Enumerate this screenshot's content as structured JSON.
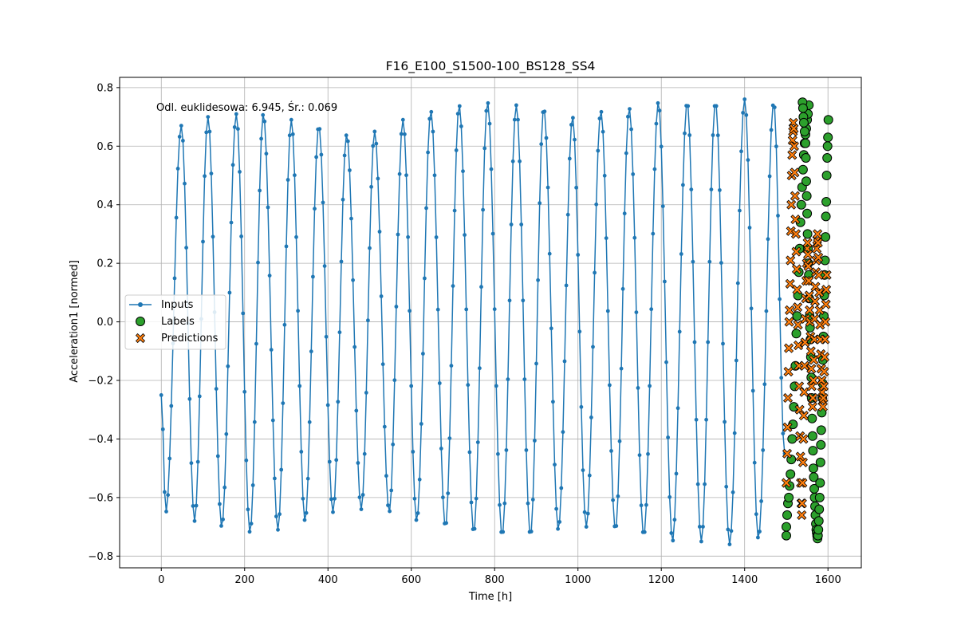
{
  "chart_data": {
    "type": "line",
    "title": "F16_E100_S1500-100_BS128_SS4",
    "xlabel": "Time [h]",
    "ylabel": "Acceleration1 [normed]",
    "annotation": "Odl. euklidesowa: 6.945, Śr.: 0.069",
    "xlim": [
      -100,
      1680
    ],
    "ylim": [
      -0.84,
      0.835
    ],
    "xticks": [
      0,
      200,
      400,
      600,
      800,
      1000,
      1200,
      1400,
      1600
    ],
    "yticks": [
      -0.8,
      -0.6,
      -0.4,
      -0.2,
      0.0,
      0.2,
      0.4,
      0.6,
      0.8
    ],
    "xtick_labels": [
      "0",
      "200",
      "400",
      "600",
      "800",
      "1000",
      "1200",
      "1400",
      "1600"
    ],
    "ytick_labels": [
      "−0.8",
      "−0.6",
      "−0.4",
      "−0.2",
      "0.0",
      "0.2",
      "0.4",
      "0.6",
      "0.8"
    ],
    "grid": true,
    "legend_position": "center-left",
    "inputs": {
      "name": "Inputs",
      "color": "#1f77b4",
      "x_start": 0,
      "x_end": 1496,
      "x_step": 4,
      "peaks": [
        {
          "t": 48,
          "v": 0.67
        },
        {
          "t": 112,
          "v": 0.7
        },
        {
          "t": 180,
          "v": 0.71
        },
        {
          "t": 245,
          "v": 0.71
        },
        {
          "t": 312,
          "v": 0.69
        },
        {
          "t": 378,
          "v": 0.67
        },
        {
          "t": 445,
          "v": 0.64
        },
        {
          "t": 512,
          "v": 0.65
        },
        {
          "t": 580,
          "v": 0.69
        },
        {
          "t": 647,
          "v": 0.72
        },
        {
          "t": 715,
          "v": 0.74
        },
        {
          "t": 783,
          "v": 0.75
        },
        {
          "t": 852,
          "v": 0.74
        },
        {
          "t": 918,
          "v": 0.73
        },
        {
          "t": 987,
          "v": 0.7
        },
        {
          "t": 1055,
          "v": 0.72
        },
        {
          "t": 1123,
          "v": 0.73
        },
        {
          "t": 1193,
          "v": 0.75
        },
        {
          "t": 1262,
          "v": 0.75
        },
        {
          "t": 1330,
          "v": 0.75
        },
        {
          "t": 1400,
          "v": 0.76
        },
        {
          "t": 1470,
          "v": 0.75
        }
      ],
      "troughs": [
        {
          "t": 11,
          "v": -0.65
        },
        {
          "t": 80,
          "v": -0.68
        },
        {
          "t": 145,
          "v": -0.7
        },
        {
          "t": 213,
          "v": -0.72
        },
        {
          "t": 280,
          "v": -0.71
        },
        {
          "t": 345,
          "v": -0.68
        },
        {
          "t": 412,
          "v": -0.65
        },
        {
          "t": 480,
          "v": -0.64
        },
        {
          "t": 547,
          "v": -0.65
        },
        {
          "t": 613,
          "v": -0.68
        },
        {
          "t": 682,
          "v": -0.7
        },
        {
          "t": 750,
          "v": -0.72
        },
        {
          "t": 818,
          "v": -0.73
        },
        {
          "t": 886,
          "v": -0.73
        },
        {
          "t": 953,
          "v": -0.71
        },
        {
          "t": 1020,
          "v": -0.7
        },
        {
          "t": 1090,
          "v": -0.71
        },
        {
          "t": 1158,
          "v": -0.73
        },
        {
          "t": 1227,
          "v": -0.75
        },
        {
          "t": 1296,
          "v": -0.75
        },
        {
          "t": 1364,
          "v": -0.76
        },
        {
          "t": 1433,
          "v": -0.74
        }
      ]
    },
    "labels": {
      "name": "Labels",
      "color": "#2ca02c",
      "edge": "#000000",
      "points": [
        [
          1500,
          -0.73
        ],
        [
          1500,
          -0.7
        ],
        [
          1502,
          -0.66
        ],
        [
          1504,
          -0.62
        ],
        [
          1506,
          -0.6
        ],
        [
          1508,
          -0.56
        ],
        [
          1510,
          -0.52
        ],
        [
          1512,
          -0.47
        ],
        [
          1514,
          -0.4
        ],
        [
          1516,
          -0.35
        ],
        [
          1518,
          -0.29
        ],
        [
          1520,
          -0.22
        ],
        [
          1522,
          -0.15
        ],
        [
          1524,
          -0.04
        ],
        [
          1526,
          0.02
        ],
        [
          1528,
          0.09
        ],
        [
          1530,
          0.17
        ],
        [
          1532,
          0.25
        ],
        [
          1534,
          0.34
        ],
        [
          1536,
          0.4
        ],
        [
          1538,
          0.46
        ],
        [
          1540,
          0.52
        ],
        [
          1542,
          0.57
        ],
        [
          1544,
          0.61
        ],
        [
          1546,
          0.64
        ],
        [
          1548,
          0.66
        ],
        [
          1550,
          0.69
        ],
        [
          1552,
          0.71
        ],
        [
          1554,
          0.74
        ],
        [
          1539,
          0.75
        ],
        [
          1540,
          0.73
        ],
        [
          1541,
          0.7
        ],
        [
          1542,
          0.68
        ],
        [
          1544,
          0.65
        ],
        [
          1546,
          0.61
        ],
        [
          1547,
          0.56
        ],
        [
          1548,
          0.48
        ],
        [
          1549,
          0.43
        ],
        [
          1550,
          0.37
        ],
        [
          1551,
          0.3
        ],
        [
          1552,
          0.25
        ],
        [
          1553,
          0.2
        ],
        [
          1554,
          0.16
        ],
        [
          1555,
          0.08
        ],
        [
          1556,
          0.02
        ],
        [
          1557,
          -0.02
        ],
        [
          1558,
          -0.06
        ],
        [
          1559,
          -0.12
        ],
        [
          1560,
          -0.19
        ],
        [
          1561,
          -0.26
        ],
        [
          1562,
          -0.33
        ],
        [
          1563,
          -0.39
        ],
        [
          1564,
          -0.44
        ],
        [
          1565,
          -0.5
        ],
        [
          1566,
          -0.53
        ],
        [
          1567,
          -0.57
        ],
        [
          1568,
          -0.6
        ],
        [
          1569,
          -0.63
        ],
        [
          1570,
          -0.66
        ],
        [
          1571,
          -0.69
        ],
        [
          1572,
          -0.71
        ],
        [
          1573,
          -0.72
        ],
        [
          1574,
          -0.73
        ],
        [
          1575,
          -0.74
        ],
        [
          1576,
          -0.73
        ],
        [
          1577,
          -0.71
        ],
        [
          1578,
          -0.68
        ],
        [
          1579,
          -0.64
        ],
        [
          1580,
          -0.6
        ],
        [
          1581,
          -0.55
        ],
        [
          1582,
          -0.48
        ],
        [
          1583,
          -0.42
        ],
        [
          1584,
          -0.37
        ],
        [
          1585,
          -0.31
        ],
        [
          1586,
          -0.26
        ],
        [
          1587,
          -0.21
        ],
        [
          1588,
          -0.13
        ],
        [
          1589,
          -0.05
        ],
        [
          1590,
          0.02
        ],
        [
          1591,
          0.09
        ],
        [
          1592,
          0.16
        ],
        [
          1593,
          0.21
        ],
        [
          1594,
          0.29
        ],
        [
          1595,
          0.36
        ],
        [
          1596,
          0.41
        ],
        [
          1597,
          0.5
        ],
        [
          1598,
          0.56
        ],
        [
          1599,
          0.6
        ],
        [
          1600,
          0.63
        ],
        [
          1601,
          0.69
        ]
      ]
    },
    "predictions": {
      "name": "Predictions",
      "color": "#ff7f0e",
      "edge": "#000000",
      "points": [
        [
          1500,
          -0.55
        ],
        [
          1502,
          -0.45
        ],
        [
          1503,
          -0.36
        ],
        [
          1504,
          -0.26
        ],
        [
          1505,
          -0.17
        ],
        [
          1506,
          -0.09
        ],
        [
          1507,
          0.0
        ],
        [
          1508,
          0.04
        ],
        [
          1509,
          0.13
        ],
        [
          1510,
          0.21
        ],
        [
          1511,
          0.31
        ],
        [
          1512,
          0.4
        ],
        [
          1513,
          0.5
        ],
        [
          1514,
          0.57
        ],
        [
          1515,
          0.62
        ],
        [
          1516,
          0.65
        ],
        [
          1517,
          0.68
        ],
        [
          1518,
          0.66
        ],
        [
          1519,
          0.6
        ],
        [
          1520,
          0.51
        ],
        [
          1521,
          0.43
        ],
        [
          1522,
          0.35
        ],
        [
          1523,
          0.3
        ],
        [
          1524,
          0.24
        ],
        [
          1525,
          0.18
        ],
        [
          1526,
          0.11
        ],
        [
          1527,
          0.05
        ],
        [
          1528,
          -0.01
        ],
        [
          1529,
          -0.08
        ],
        [
          1530,
          -0.15
        ],
        [
          1531,
          -0.22
        ],
        [
          1532,
          -0.3
        ],
        [
          1533,
          -0.39
        ],
        [
          1534,
          -0.46
        ],
        [
          1535,
          -0.55
        ],
        [
          1536,
          -0.62
        ],
        [
          1537,
          -0.66
        ],
        [
          1538,
          -0.62
        ],
        [
          1539,
          -0.55
        ],
        [
          1540,
          -0.48
        ],
        [
          1541,
          -0.4
        ],
        [
          1542,
          -0.32
        ],
        [
          1543,
          -0.24
        ],
        [
          1544,
          -0.15
        ],
        [
          1545,
          -0.07
        ],
        [
          1546,
          0.01
        ],
        [
          1547,
          0.08
        ],
        [
          1548,
          0.14
        ],
        [
          1549,
          0.2
        ],
        [
          1550,
          0.25
        ],
        [
          1551,
          0.27
        ],
        [
          1552,
          0.23
        ],
        [
          1553,
          0.19
        ],
        [
          1554,
          0.14
        ],
        [
          1555,
          0.09
        ],
        [
          1556,
          0.04
        ],
        [
          1557,
          0.0
        ],
        [
          1558,
          -0.05
        ],
        [
          1559,
          -0.1
        ],
        [
          1560,
          -0.16
        ],
        [
          1561,
          -0.22
        ],
        [
          1562,
          -0.26
        ],
        [
          1563,
          -0.29
        ],
        [
          1564,
          -0.26
        ],
        [
          1565,
          -0.2
        ],
        [
          1566,
          -0.13
        ],
        [
          1567,
          -0.06
        ],
        [
          1568,
          0.01
        ],
        [
          1569,
          0.07
        ],
        [
          1570,
          0.12
        ],
        [
          1571,
          0.17
        ],
        [
          1572,
          0.21
        ],
        [
          1573,
          0.25
        ],
        [
          1574,
          0.28
        ],
        [
          1575,
          0.3
        ],
        [
          1576,
          0.27
        ],
        [
          1577,
          0.22
        ],
        [
          1578,
          0.16
        ],
        [
          1579,
          0.1
        ],
        [
          1580,
          0.04
        ],
        [
          1581,
          -0.01
        ],
        [
          1582,
          -0.06
        ],
        [
          1583,
          -0.11
        ],
        [
          1584,
          -0.16
        ],
        [
          1585,
          -0.2
        ],
        [
          1586,
          -0.24
        ],
        [
          1587,
          -0.27
        ],
        [
          1588,
          -0.29
        ],
        [
          1589,
          -0.26
        ],
        [
          1590,
          -0.22
        ],
        [
          1591,
          -0.17
        ],
        [
          1592,
          -0.12
        ],
        [
          1593,
          -0.06
        ],
        [
          1594,
          0.0
        ],
        [
          1595,
          0.06
        ],
        [
          1596,
          0.11
        ],
        [
          1597,
          0.16
        ]
      ]
    }
  }
}
